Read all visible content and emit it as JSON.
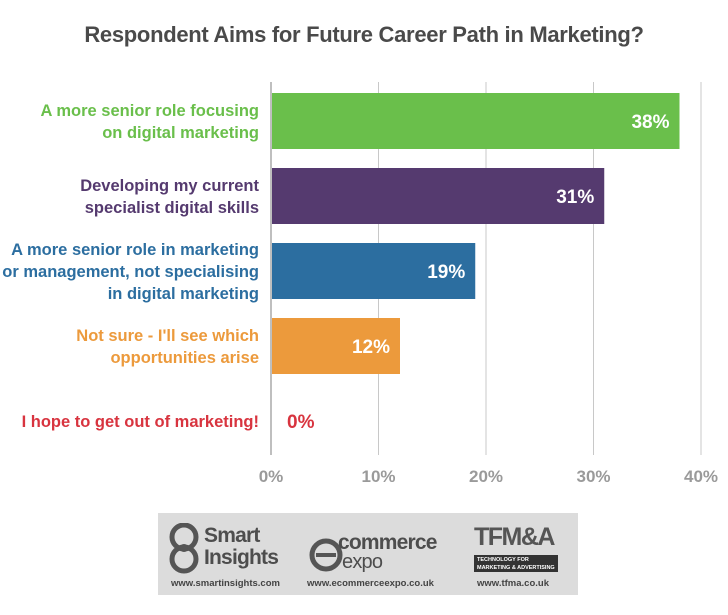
{
  "chart_data": {
    "type": "bar",
    "orientation": "horizontal",
    "title": "Respondent Aims for Future Career Path in Marketing?",
    "categories": [
      [
        "A more senior role focusing",
        "on digital marketing"
      ],
      [
        "Developing my current",
        "specialist digital skills"
      ],
      [
        "A more senior role in marketing",
        "or management, not specialising",
        "in digital marketing"
      ],
      [
        "Not sure - I'll see which",
        "opportunities arise"
      ],
      [
        "I hope to get out of marketing!"
      ]
    ],
    "values": [
      38,
      31,
      19,
      12,
      0
    ],
    "value_labels": [
      "38%",
      "31%",
      "19%",
      "12%",
      "0%"
    ],
    "colors": [
      "#6abf4b",
      "#553a6f",
      "#2c6ea0",
      "#ec9a3c",
      "#d8343f"
    ],
    "xlim": [
      0,
      40
    ],
    "xticks": [
      0,
      10,
      20,
      30,
      40
    ],
    "xtick_labels": [
      "0%",
      "10%",
      "20%",
      "30%",
      "40%"
    ],
    "grid": true,
    "xlabel": "",
    "ylabel": ""
  },
  "footer": {
    "smart_insights": {
      "line1": "Smart",
      "line2": "Insights",
      "url": "www.smartinsights.com"
    },
    "ecommerce_expo": {
      "line1": "commerce",
      "line2": "expo",
      "url": "www.ecommerceexpo.co.uk"
    },
    "tfma": {
      "name": "TFM&A",
      "tag": "TECHNOLOGY FOR MARKETING & ADVERTISING",
      "url": "www.tfma.co.uk"
    }
  }
}
